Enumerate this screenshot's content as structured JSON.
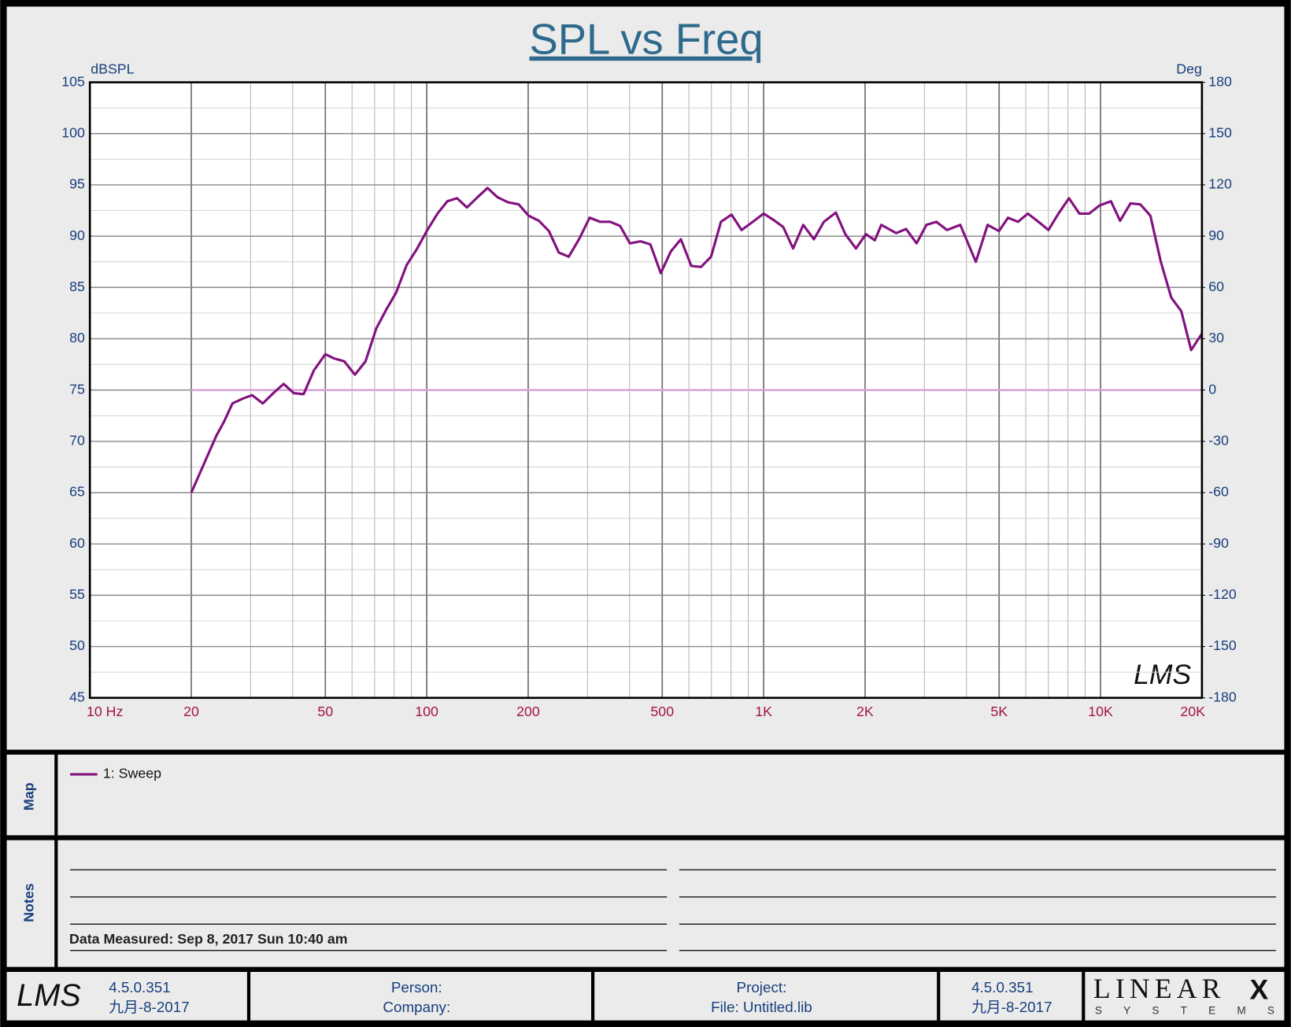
{
  "chart_data": {
    "type": "line",
    "title": "SPL vs Freq",
    "ylabel": "dBSPL",
    "y2label": "Deg",
    "xscale": "log",
    "grid": true,
    "xlim": [
      10,
      20000
    ],
    "xticks": [
      {
        "value": 10,
        "label": "10  Hz"
      },
      20,
      50,
      100,
      200,
      500,
      {
        "value": 1000,
        "label": "1K"
      },
      {
        "value": 2000,
        "label": "2K"
      },
      {
        "value": 5000,
        "label": "5K"
      },
      {
        "value": 10000,
        "label": "10K"
      },
      {
        "value": 20000,
        "label": "20K"
      }
    ],
    "ylim": [
      45,
      105
    ],
    "yticks": [
      45,
      50,
      55,
      60,
      65,
      70,
      75,
      80,
      85,
      90,
      95,
      100,
      105
    ],
    "y2lim": [
      -180,
      180
    ],
    "y2ticks": [
      -180,
      -150,
      -120,
      -90,
      -60,
      -30,
      0,
      30,
      60,
      90,
      120,
      150,
      180
    ],
    "watermark": "LMS",
    "series": [
      {
        "name": "1: Sweep",
        "color": "#83117f",
        "x": [
          20,
          23.7,
          25,
          26.5,
          28.6,
          30.3,
          32.6,
          35.3,
          37.6,
          40.3,
          43.1,
          46.2,
          50,
          52.9,
          56.9,
          61.2,
          65.8,
          70.8,
          75.7,
          81.1,
          87.2,
          93.3,
          100,
          107.6,
          115.1,
          123,
          131.6,
          141.5,
          151.5,
          162.1,
          174.3,
          187.5,
          200.5,
          215.3,
          230.4,
          246.6,
          263.9,
          284.2,
          304.3,
          327.2,
          350.2,
          374.8,
          401,
          431,
          461,
          495,
          530,
          568,
          610,
          652,
          698,
          747,
          803,
          860,
          920,
          1000,
          1068,
          1143,
          1223,
          1311,
          1410,
          1509,
          1638,
          1747,
          1880,
          2011,
          2138,
          2235,
          2474,
          2647,
          2844,
          3042,
          3256,
          3500,
          3834,
          4265,
          4621,
          4995,
          5315,
          5685,
          6087,
          6545,
          7004,
          7500,
          8060,
          8650,
          9250,
          9940,
          10740,
          11430,
          12270,
          13130,
          14060,
          15100,
          16220,
          17360,
          18580,
          20000
        ],
        "values": [
          65,
          70.5,
          71.9,
          73.7,
          74.2,
          74.5,
          73.7,
          74.8,
          75.6,
          74.7,
          74.6,
          76.9,
          78.5,
          78.1,
          77.8,
          76.5,
          77.8,
          81,
          82.8,
          84.5,
          87.2,
          88.7,
          90.5,
          92.2,
          93.4,
          93.7,
          92.8,
          93.8,
          94.7,
          93.8,
          93.3,
          93.1,
          92,
          91.5,
          90.5,
          88.4,
          88,
          89.8,
          91.8,
          91.4,
          91.4,
          91,
          89.3,
          89.5,
          89.2,
          86.4,
          88.5,
          89.7,
          87.1,
          87,
          88,
          91.4,
          92.1,
          90.6,
          91.3,
          92.2,
          91.6,
          90.9,
          88.8,
          91.1,
          89.7,
          91.4,
          92.3,
          90.2,
          88.8,
          90.2,
          89.6,
          91.1,
          90.3,
          90.7,
          89.3,
          91.1,
          91.4,
          90.6,
          91.1,
          87.5,
          91.1,
          90.5,
          91.8,
          91.4,
          92.2,
          91.4,
          90.6,
          92.2,
          93.7,
          92.2,
          92.2,
          93,
          93.4,
          91.5,
          93.2,
          93.1,
          92,
          87.5,
          84,
          82.7,
          78.9,
          80.5
        ]
      },
      {
        "color": "#d9a6d9",
        "axis": "y2",
        "x": [
          20,
          20000
        ],
        "values": [
          0,
          0
        ]
      }
    ]
  },
  "map": {
    "label": "Map"
  },
  "notes": {
    "label": "Notes",
    "data_measured": "Data Measured: Sep 8, 2017 Sun 10:40 am"
  },
  "footer": {
    "logo": "LMS",
    "left_version": "4.5.0.351",
    "left_date": "九月-8-2017",
    "person": "Person:",
    "company": "Company:",
    "project": "Project:",
    "file": "File: Untitled.lib",
    "right_version": "4.5.0.351",
    "right_date": "九月-8-2017",
    "brand": "LINEAR",
    "brand_mark": "X",
    "brand_sub": "SYSTEMS"
  }
}
